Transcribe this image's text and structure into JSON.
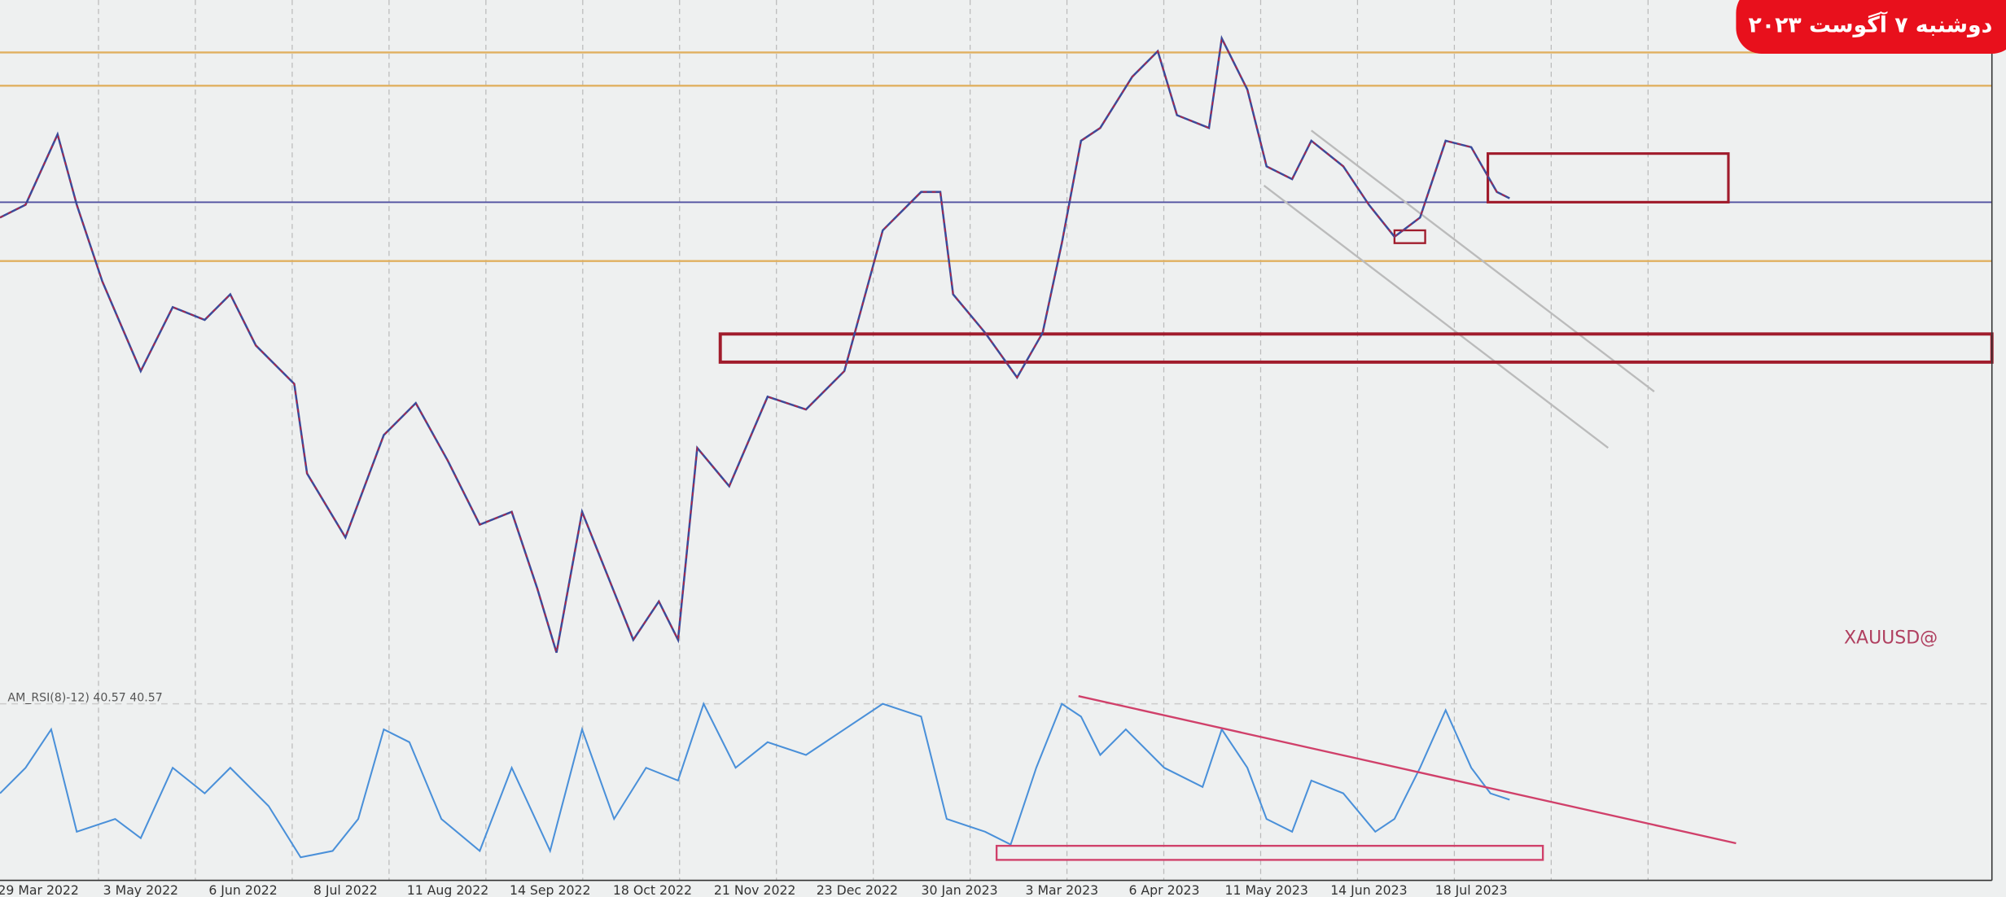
{
  "banner": {
    "date": "دوشنبه ۷ آگوست ۲۰۲۳"
  },
  "chart": {
    "indicator_label": "AM_RSI(8)-12) 40.57 40.57",
    "watermark": "XAUUSD@",
    "x_axis_labels": [
      "29 Mar 2022",
      "3 May 2022",
      "6 Jun 2022",
      "8 Jul 2022",
      "11 Aug 2022",
      "14 Sep 2022",
      "18 Oct 2022",
      "21 Nov 2022",
      "23 Dec 2022",
      "30 Jan 2023",
      "3 Mar 2023",
      "6 Apr 2023",
      "11 May 2023",
      "14 Jun 2023",
      "18 Jul 2023"
    ]
  }
}
